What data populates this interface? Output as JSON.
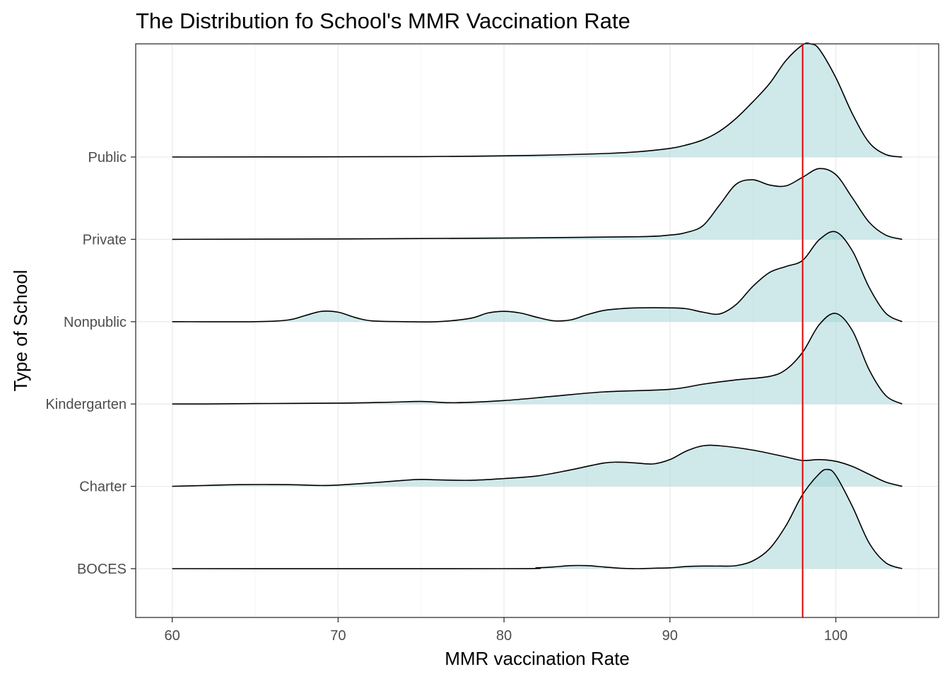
{
  "chart_data": {
    "type": "ridgeline",
    "title": "The Distribution fo School's MMR Vaccination Rate",
    "xlabel": "MMR vaccination Rate",
    "ylabel": "Type of School",
    "xlim": [
      57.8,
      106.2
    ],
    "x_ticks": [
      60,
      70,
      80,
      90,
      100
    ],
    "x_tick_labels": [
      "60",
      "70",
      "80",
      "90",
      "100"
    ],
    "grid": true,
    "fill_color": "#9fd3d5",
    "line_color": "#000000",
    "reference_line": {
      "x": 98,
      "color": "#e00000"
    },
    "categories": [
      "BOCES",
      "Charter",
      "Kindergarten",
      "Nonpublic",
      "Private",
      "Public"
    ],
    "series": [
      {
        "category": "BOCES",
        "x": [
          60,
          80,
          82,
          83,
          84,
          85,
          86,
          87,
          88,
          89,
          90,
          91,
          92,
          93,
          94,
          95,
          96,
          97,
          98,
          99,
          99.5,
          100,
          101,
          102,
          103,
          104
        ],
        "density": [
          0.0,
          0.0,
          0.01,
          0.02,
          0.035,
          0.035,
          0.02,
          0.005,
          0.0,
          0.005,
          0.01,
          0.025,
          0.03,
          0.03,
          0.035,
          0.09,
          0.23,
          0.5,
          0.86,
          1.1,
          1.15,
          1.08,
          0.72,
          0.3,
          0.07,
          0.0
        ]
      },
      {
        "category": "Charter",
        "x": [
          60,
          62,
          64,
          67,
          69,
          70,
          72,
          74,
          75,
          76,
          78,
          80,
          82,
          84,
          86,
          87,
          88,
          89,
          90,
          91,
          92,
          93,
          95,
          97,
          98,
          99,
          100,
          101,
          102,
          103,
          104
        ],
        "density": [
          0.0,
          0.01,
          0.02,
          0.02,
          0.01,
          0.015,
          0.04,
          0.07,
          0.08,
          0.075,
          0.07,
          0.09,
          0.12,
          0.19,
          0.27,
          0.28,
          0.27,
          0.26,
          0.31,
          0.41,
          0.47,
          0.47,
          0.42,
          0.34,
          0.3,
          0.31,
          0.29,
          0.23,
          0.14,
          0.05,
          0.0
        ]
      },
      {
        "category": "Kindergarten",
        "x": [
          60,
          62,
          65,
          70,
          73,
          75,
          77,
          80,
          83,
          86,
          90,
          92,
          94,
          96,
          97,
          98,
          99,
          100,
          101,
          102,
          103,
          104
        ],
        "density": [
          0.0,
          0.0,
          0.005,
          0.01,
          0.02,
          0.03,
          0.015,
          0.04,
          0.09,
          0.14,
          0.17,
          0.23,
          0.28,
          0.32,
          0.4,
          0.6,
          0.92,
          1.05,
          0.85,
          0.4,
          0.1,
          0.0
        ]
      },
      {
        "category": "Nonpublic",
        "x": [
          60,
          65,
          67,
          68,
          69,
          70,
          71,
          72,
          74,
          76,
          78,
          79,
          80,
          81,
          82,
          83,
          84,
          85,
          86,
          87,
          88,
          90,
          91,
          92,
          93,
          94,
          95,
          96,
          97,
          98,
          99,
          100,
          101,
          102,
          103,
          104
        ],
        "density": [
          0.0,
          0.0,
          0.02,
          0.07,
          0.12,
          0.11,
          0.05,
          0.01,
          0.0,
          0.0,
          0.04,
          0.1,
          0.12,
          0.1,
          0.05,
          0.01,
          0.02,
          0.08,
          0.13,
          0.15,
          0.16,
          0.16,
          0.15,
          0.11,
          0.09,
          0.2,
          0.41,
          0.57,
          0.64,
          0.71,
          0.95,
          1.04,
          0.82,
          0.4,
          0.1,
          0.0
        ]
      },
      {
        "category": "Private",
        "x": [
          60,
          70,
          80,
          88,
          90,
          91,
          92,
          93,
          94,
          95,
          96,
          97,
          98,
          99,
          100,
          101,
          102,
          103,
          104
        ],
        "density": [
          0.0,
          0.005,
          0.015,
          0.03,
          0.05,
          0.08,
          0.16,
          0.4,
          0.64,
          0.69,
          0.63,
          0.62,
          0.72,
          0.82,
          0.75,
          0.48,
          0.2,
          0.05,
          0.0
        ]
      },
      {
        "category": "Public",
        "x": [
          60,
          75,
          82,
          86,
          88,
          90,
          91,
          92,
          93,
          94,
          95,
          96,
          97,
          98,
          98.5,
          99,
          100,
          101,
          102,
          103,
          104
        ],
        "density": [
          0.0,
          0.005,
          0.02,
          0.04,
          0.06,
          0.1,
          0.14,
          0.2,
          0.3,
          0.45,
          0.64,
          0.85,
          1.12,
          1.3,
          1.31,
          1.25,
          0.92,
          0.5,
          0.17,
          0.03,
          0.0
        ]
      }
    ]
  }
}
